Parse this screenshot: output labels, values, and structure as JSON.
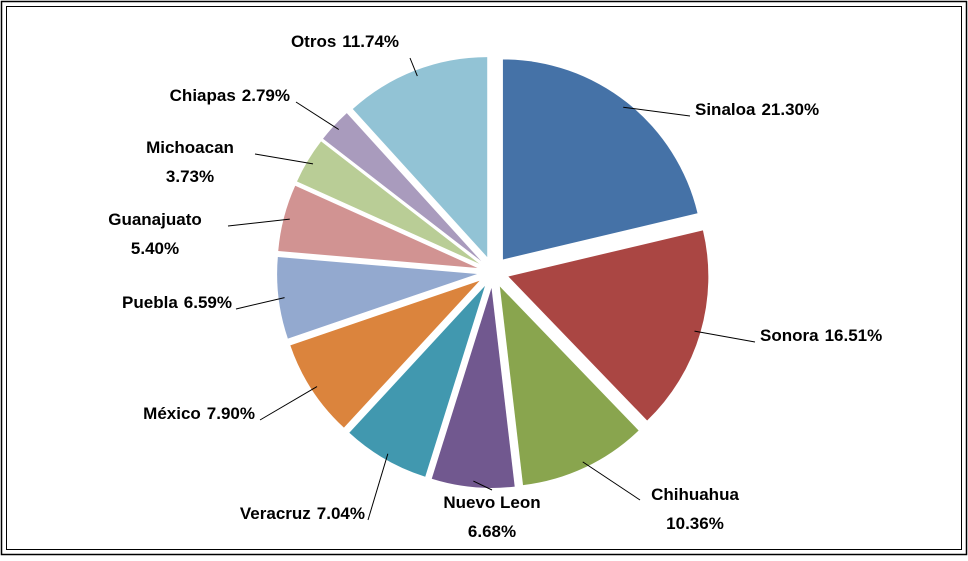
{
  "chart_data": {
    "type": "pie",
    "categories": [
      "Sinaloa",
      "Sonora",
      "Chihuahua",
      "Nuevo Leon",
      "Veracruz",
      "México",
      "Puebla",
      "Guanajuato",
      "Michoacan",
      "Chiapas",
      "Otros"
    ],
    "values": [
      21.3,
      16.51,
      10.36,
      6.68,
      7.04,
      7.9,
      6.59,
      5.4,
      3.73,
      2.79,
      11.74
    ],
    "value_labels": [
      "21.30%",
      "16.51%",
      "10.36%",
      "6.68%",
      "7.04%",
      "7.90%",
      "6.59%",
      "5.40%",
      "3.73%",
      "2.79%",
      "11.74%"
    ],
    "colors": [
      "#4572a7",
      "#aa4643",
      "#89a54e",
      "#71588f",
      "#4198af",
      "#db843d",
      "#93a9cf",
      "#d19392",
      "#b9cd96",
      "#a99bbd",
      "#92c3d5"
    ]
  }
}
